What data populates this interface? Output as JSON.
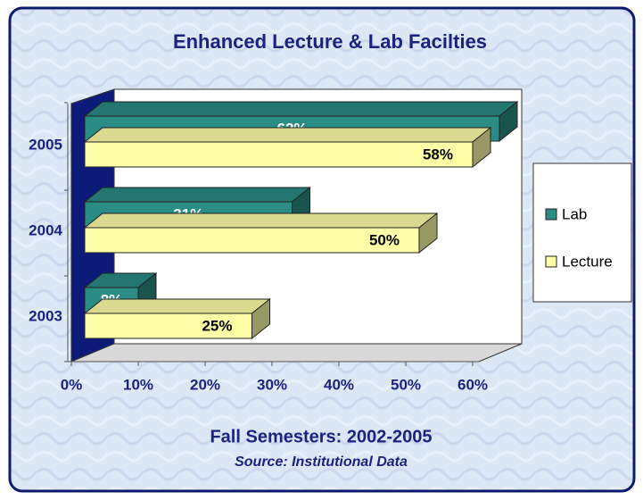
{
  "chart_data": {
    "type": "bar",
    "orientation": "horizontal",
    "title": "Enhanced Lecture & Lab Facilties",
    "subtitle": "Fall Semesters: 2002-2005",
    "source": "Source: Institutional Data",
    "categories": [
      "2003",
      "2004",
      "2005"
    ],
    "series": [
      {
        "name": "Lab",
        "color": "#2a8c84",
        "values": [
          8,
          31,
          62
        ],
        "value_labels": [
          "8%",
          "31%",
          "62%"
        ]
      },
      {
        "name": "Lecture",
        "color": "#ffffa8",
        "values": [
          25,
          50,
          58
        ],
        "value_labels": [
          "25%",
          "50%",
          "58%"
        ]
      }
    ],
    "xlim": [
      0,
      60
    ],
    "xticks": [
      {
        "value": 0,
        "label": "0%"
      },
      {
        "value": 10,
        "label": "10%"
      },
      {
        "value": 20,
        "label": "20%"
      },
      {
        "value": 30,
        "label": "30%"
      },
      {
        "value": 40,
        "label": "40%"
      },
      {
        "value": 50,
        "label": "50%"
      },
      {
        "value": 60,
        "label": "60%"
      }
    ],
    "grid": false,
    "legend": "right"
  }
}
